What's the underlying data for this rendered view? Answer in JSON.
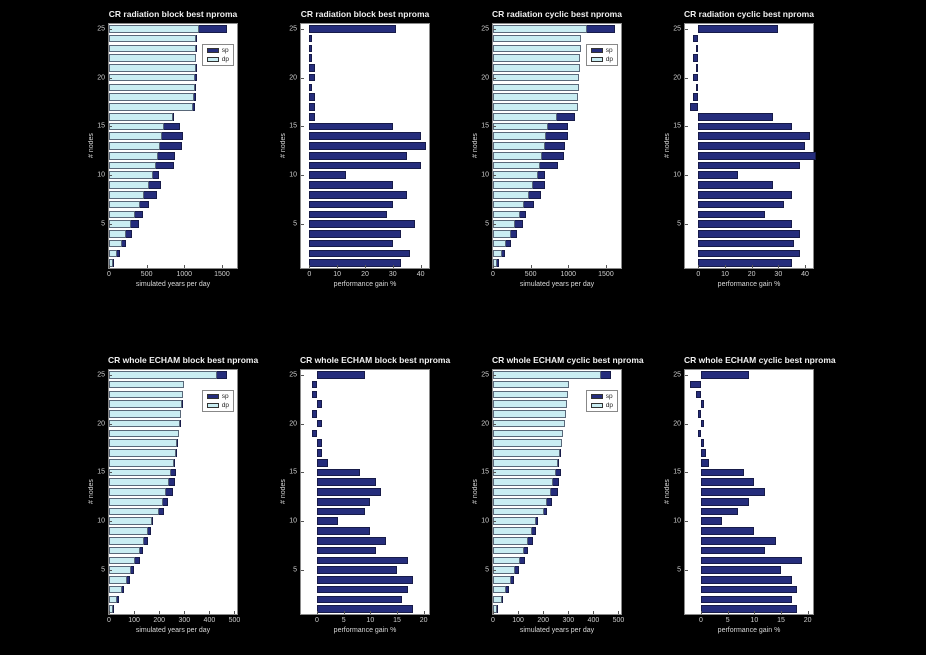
{
  "figure": {
    "background": "#000000",
    "panel_background": "#ffffff",
    "colors": {
      "sp": "#252d7c",
      "dp": "#c9edf2"
    },
    "nodes": [
      1,
      2,
      3,
      4,
      5,
      6,
      7,
      8,
      9,
      10,
      11,
      12,
      13,
      14,
      15,
      16,
      17,
      18,
      19,
      20,
      21,
      22,
      23,
      24,
      25
    ]
  },
  "chart_data": [
    {
      "type": "bar",
      "orientation": "horizontal",
      "title": "CR radiation block best nproma",
      "xlabel": "simulated years per day",
      "ylabel": "# nodes",
      "xlim": [
        0,
        1700
      ],
      "xticks": [
        0,
        500,
        1000,
        1500
      ],
      "yticks": [
        5,
        10,
        15,
        20,
        25
      ],
      "legend": [
        "sp",
        "dp"
      ],
      "series": [
        {
          "name": "sp",
          "color_key": "sp",
          "values": [
            67,
            150,
            221,
            306,
            400,
            448,
            533,
            635,
            689,
            667,
            868,
            878,
            966,
            980,
            949,
            867,
            1142,
            1153,
            1151,
            1163,
            1173,
            1162,
            1172,
            1172,
            1572
          ]
        },
        {
          "name": "dp",
          "color_key": "dp",
          "values": [
            50,
            110,
            170,
            230,
            290,
            350,
            410,
            470,
            530,
            590,
            620,
            650,
            680,
            700,
            730,
            850,
            1120,
            1130,
            1140,
            1140,
            1150,
            1150,
            1160,
            1160,
            1200
          ]
        }
      ]
    },
    {
      "type": "bar",
      "orientation": "horizontal",
      "title": "CR radiation block best nproma",
      "xlabel": "performance gain %",
      "ylabel": "# nodes",
      "xlim": [
        -3,
        43
      ],
      "xticks": [
        0,
        10,
        20,
        30,
        40
      ],
      "yticks": [
        5,
        10,
        15,
        20,
        25
      ],
      "legend": null,
      "series": [
        {
          "name": "sp",
          "color_key": "sp",
          "values": [
            33,
            36,
            30,
            33,
            38,
            28,
            30,
            35,
            30,
            13,
            40,
            35,
            42,
            40,
            30,
            2,
            2,
            2,
            1,
            2,
            2,
            1,
            1,
            1,
            31
          ]
        }
      ]
    },
    {
      "type": "bar",
      "orientation": "horizontal",
      "title": "CR radiation cyclic best nproma",
      "xlabel": "simulated years per day",
      "ylabel": "# nodes",
      "xlim": [
        0,
        1700
      ],
      "xticks": [
        0,
        500,
        1000,
        1500
      ],
      "yticks": [
        5,
        10,
        15,
        20,
        25
      ],
      "legend": [
        "sp",
        "dp"
      ],
      "series": [
        {
          "name": "sp",
          "color_key": "sp",
          "values": [
            74,
            159,
            238,
            324,
            398,
            444,
            548,
            641,
            685,
            684,
            863,
            943,
            959,
            1001,
            992,
            1094,
            1091,
            1112,
            1134,
            1122,
            1143,
            1132,
            1153,
            1142,
            1625
          ]
        },
        {
          "name": "dp",
          "color_key": "dp",
          "values": [
            55,
            115,
            175,
            235,
            295,
            355,
            415,
            475,
            535,
            595,
            625,
            655,
            685,
            705,
            735,
            855,
            1125,
            1135,
            1145,
            1145,
            1155,
            1155,
            1165,
            1165,
            1250
          ]
        }
      ]
    },
    {
      "type": "bar",
      "orientation": "horizontal",
      "title": "CR radiation cyclic best nproma",
      "xlabel": "performance gain %",
      "ylabel": "# nodes",
      "xlim": [
        -5,
        43
      ],
      "xticks": [
        0,
        10,
        20,
        30,
        40
      ],
      "yticks": [
        5,
        10,
        15,
        20,
        25
      ],
      "legend": null,
      "series": [
        {
          "name": "sp",
          "color_key": "sp",
          "values": [
            35,
            38,
            36,
            38,
            35,
            25,
            32,
            35,
            28,
            15,
            38,
            44,
            40,
            42,
            35,
            28,
            -3,
            -2,
            -1,
            -2,
            -1,
            -2,
            -1,
            -2,
            30
          ]
        }
      ]
    },
    {
      "type": "bar",
      "orientation": "horizontal",
      "title": "CR whole ECHAM block best nproma",
      "xlabel": "simulated years per day",
      "ylabel": "# nodes",
      "xlim": [
        0,
        510
      ],
      "xticks": [
        0,
        100,
        200,
        300,
        400,
        500
      ],
      "yticks": [
        5,
        10,
        15,
        20,
        25
      ],
      "legend": [
        "sp",
        "dp"
      ],
      "series": [
        {
          "name": "sp",
          "color_key": "sp",
          "values": [
            18,
            38,
            61,
            83,
            101,
            123,
            135,
            156,
            169,
            177,
            218,
            237,
            255,
            264,
            268,
            263,
            269,
            275,
            275,
            286,
            285,
            295,
            293,
            297,
            470
          ]
        },
        {
          "name": "dp",
          "color_key": "dp",
          "values": [
            15,
            33,
            52,
            70,
            88,
            105,
            122,
            138,
            154,
            170,
            200,
            215,
            228,
            238,
            248,
            258,
            266,
            272,
            278,
            283,
            288,
            292,
            296,
            300,
            430
          ]
        }
      ]
    },
    {
      "type": "bar",
      "orientation": "horizontal",
      "title": "CR whole ECHAM block best nproma",
      "xlabel": "performance gain %",
      "ylabel": "# nodes",
      "xlim": [
        -3,
        21
      ],
      "xticks": [
        0,
        5,
        10,
        15,
        20
      ],
      "yticks": [
        5,
        10,
        15,
        20,
        25
      ],
      "legend": null,
      "series": [
        {
          "name": "sp",
          "color_key": "sp",
          "values": [
            18,
            16,
            17,
            18,
            15,
            17,
            11,
            13,
            10,
            4,
            9,
            10,
            12,
            11,
            8,
            2,
            1,
            1,
            -1,
            1,
            -1,
            1,
            -1,
            -1,
            9
          ]
        }
      ]
    },
    {
      "type": "bar",
      "orientation": "horizontal",
      "title": "CR whole ECHAM cyclic best nproma",
      "xlabel": "simulated years per day",
      "ylabel": "# nodes",
      "xlim": [
        0,
        510
      ],
      "xticks": [
        0,
        100,
        200,
        300,
        400,
        500
      ],
      "yticks": [
        5,
        10,
        15,
        20,
        25
      ],
      "legend": [
        "sp",
        "dp"
      ],
      "series": [
        {
          "name": "sp",
          "color_key": "sp",
          "values": [
            19,
            40,
            63,
            83,
            102,
            126,
            138,
            158,
            171,
            178,
            216,
            237,
            258,
            264,
            270,
            264,
            271,
            275,
            279,
            286,
            289,
            295,
            295,
            296,
            469
          ]
        },
        {
          "name": "dp",
          "color_key": "dp",
          "values": [
            16,
            34,
            53,
            71,
            89,
            106,
            123,
            139,
            155,
            171,
            202,
            217,
            230,
            240,
            250,
            260,
            268,
            274,
            280,
            285,
            290,
            294,
            298,
            302,
            430
          ]
        }
      ]
    },
    {
      "type": "bar",
      "orientation": "horizontal",
      "title": "CR whole ECHAM cyclic best nproma",
      "xlabel": "performance gain %",
      "ylabel": "# nodes",
      "xlim": [
        -3,
        21
      ],
      "xticks": [
        0,
        5,
        10,
        15,
        20
      ],
      "yticks": [
        5,
        10,
        15,
        20,
        25
      ],
      "legend": null,
      "series": [
        {
          "name": "sp",
          "color_key": "sp",
          "values": [
            18,
            17,
            18,
            17,
            15,
            19,
            12,
            14,
            10,
            4,
            7,
            9,
            12,
            10,
            8,
            1.5,
            1,
            0.5,
            -0.5,
            0.5,
            -0.5,
            0.5,
            -1,
            -2,
            9
          ]
        }
      ]
    }
  ]
}
